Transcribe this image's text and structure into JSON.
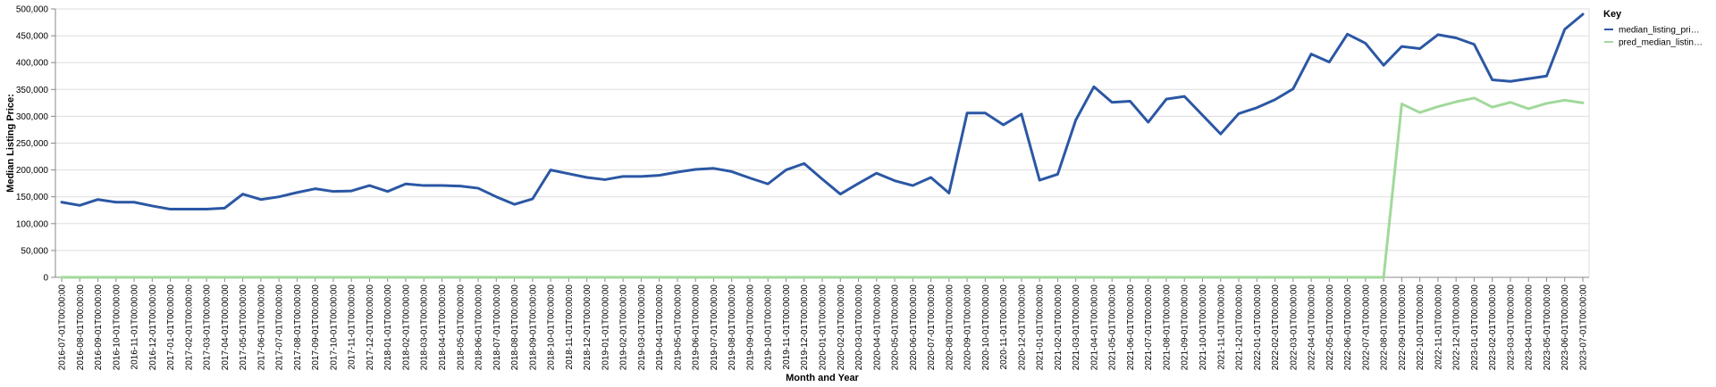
{
  "chart_data": {
    "type": "line",
    "xlabel": "Month and Year",
    "ylabel": "Median Listing Price:",
    "ylim": [
      0,
      500000
    ],
    "y_ticks": [
      "0",
      "50,000",
      "100,000",
      "150,000",
      "200,000",
      "250,000",
      "300,000",
      "350,000",
      "400,000",
      "450,000",
      "500,000"
    ],
    "grid": true,
    "legend": {
      "title": "Key",
      "placement": "top-right"
    },
    "x": [
      "2016-07-01T00:00:00",
      "2016-08-01T00:00:00",
      "2016-09-01T00:00:00",
      "2016-10-01T00:00:00",
      "2016-11-01T00:00:00",
      "2016-12-01T00:00:00",
      "2017-01-01T00:00:00",
      "2017-02-01T00:00:00",
      "2017-03-01T00:00:00",
      "2017-04-01T00:00:00",
      "2017-05-01T00:00:00",
      "2017-06-01T00:00:00",
      "2017-07-01T00:00:00",
      "2017-08-01T00:00:00",
      "2017-09-01T00:00:00",
      "2017-10-01T00:00:00",
      "2017-11-01T00:00:00",
      "2017-12-01T00:00:00",
      "2018-01-01T00:00:00",
      "2018-02-01T00:00:00",
      "2018-03-01T00:00:00",
      "2018-04-01T00:00:00",
      "2018-05-01T00:00:00",
      "2018-06-01T00:00:00",
      "2018-07-01T00:00:00",
      "2018-08-01T00:00:00",
      "2018-09-01T00:00:00",
      "2018-10-01T00:00:00",
      "2018-11-01T00:00:00",
      "2018-12-01T00:00:00",
      "2019-01-01T00:00:00",
      "2019-02-01T00:00:00",
      "2019-03-01T00:00:00",
      "2019-04-01T00:00:00",
      "2019-05-01T00:00:00",
      "2019-06-01T00:00:00",
      "2019-07-01T00:00:00",
      "2019-08-01T00:00:00",
      "2019-09-01T00:00:00",
      "2019-10-01T00:00:00",
      "2019-11-01T00:00:00",
      "2019-12-01T00:00:00",
      "2020-01-01T00:00:00",
      "2020-02-01T00:00:00",
      "2020-03-01T00:00:00",
      "2020-04-01T00:00:00",
      "2020-05-01T00:00:00",
      "2020-06-01T00:00:00",
      "2020-07-01T00:00:00",
      "2020-08-01T00:00:00",
      "2020-09-01T00:00:00",
      "2020-10-01T00:00:00",
      "2020-11-01T00:00:00",
      "2020-12-01T00:00:00",
      "2021-01-01T00:00:00",
      "2021-02-01T00:00:00",
      "2021-03-01T00:00:00",
      "2021-04-01T00:00:00",
      "2021-05-01T00:00:00",
      "2021-06-01T00:00:00",
      "2021-07-01T00:00:00",
      "2021-08-01T00:00:00",
      "2021-09-01T00:00:00",
      "2021-10-01T00:00:00",
      "2021-11-01T00:00:00",
      "2021-12-01T00:00:00",
      "2022-01-01T00:00:00",
      "2022-02-01T00:00:00",
      "2022-03-01T00:00:00",
      "2022-04-01T00:00:00",
      "2022-05-01T00:00:00",
      "2022-06-01T00:00:00",
      "2022-07-01T00:00:00",
      "2022-08-01T00:00:00",
      "2022-09-01T00:00:00",
      "2022-10-01T00:00:00",
      "2022-11-01T00:00:00",
      "2022-12-01T00:00:00",
      "2023-01-01T00:00:00",
      "2023-02-01T00:00:00",
      "2023-03-01T00:00:00",
      "2023-04-01T00:00:00",
      "2023-05-01T00:00:00",
      "2023-06-01T00:00:00",
      "2023-07-01T00:00:00"
    ],
    "series": [
      {
        "name": "median_listing_pri…",
        "color": "#2b57a4",
        "values": [
          140000,
          134000,
          145000,
          140000,
          140000,
          133000,
          127000,
          127000,
          127000,
          129000,
          155000,
          145000,
          150000,
          158000,
          165000,
          160000,
          161000,
          171000,
          160000,
          174000,
          171000,
          171000,
          170000,
          166000,
          150000,
          136000,
          146000,
          200000,
          193000,
          186000,
          182000,
          188000,
          188000,
          190000,
          196000,
          201000,
          203000,
          197000,
          185000,
          174000,
          200000,
          212000,
          183000,
          155000,
          175000,
          194000,
          180000,
          171000,
          186000,
          157000,
          306000,
          306000,
          284000,
          304000,
          181000,
          192000,
          293000,
          355000,
          326000,
          328000,
          289000,
          332000,
          337000,
          302000,
          267000,
          305000,
          316000,
          331000,
          351000,
          416000,
          401000,
          453000,
          436000,
          395000,
          430000,
          426000,
          452000,
          446000,
          434000,
          368000,
          365000,
          370000,
          375000,
          462000,
          490000
        ]
      },
      {
        "name": "pred_median_listin…",
        "color": "#a1d99b",
        "values": [
          0,
          0,
          0,
          0,
          0,
          0,
          0,
          0,
          0,
          0,
          0,
          0,
          0,
          0,
          0,
          0,
          0,
          0,
          0,
          0,
          0,
          0,
          0,
          0,
          0,
          0,
          0,
          0,
          0,
          0,
          0,
          0,
          0,
          0,
          0,
          0,
          0,
          0,
          0,
          0,
          0,
          0,
          0,
          0,
          0,
          0,
          0,
          0,
          0,
          0,
          0,
          0,
          0,
          0,
          0,
          0,
          0,
          0,
          0,
          0,
          0,
          0,
          0,
          0,
          0,
          0,
          0,
          0,
          0,
          0,
          0,
          0,
          0,
          0,
          323000,
          307000,
          318000,
          327000,
          334000,
          317000,
          326000,
          314000,
          324000,
          330000,
          325000
        ]
      }
    ]
  }
}
